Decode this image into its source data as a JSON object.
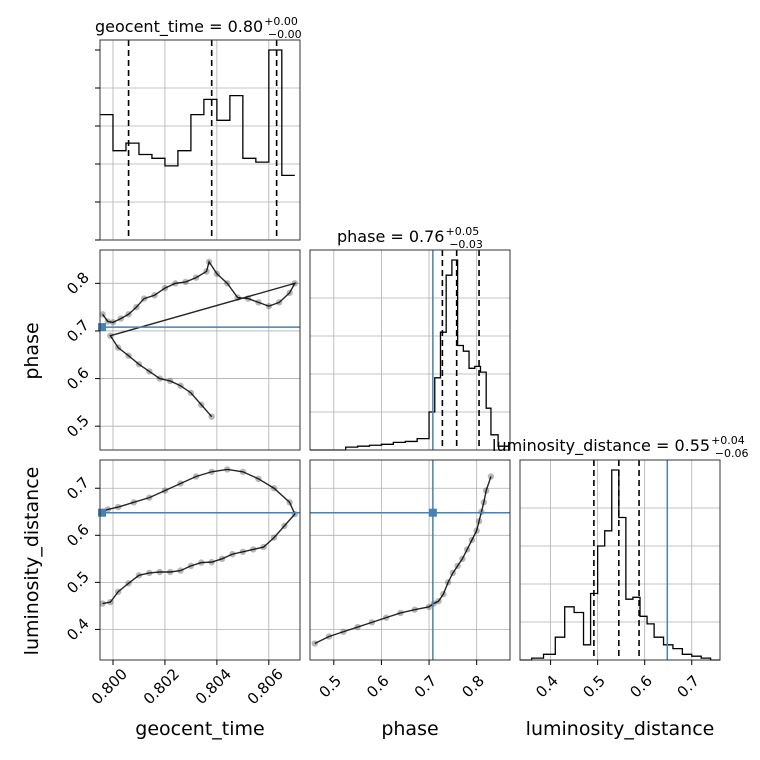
{
  "chart_data": {
    "type": "corner",
    "params": [
      "geocent_time",
      "phase",
      "luminosity_distance"
    ],
    "colors": {
      "truth": "#4682b4",
      "hist": "#000000",
      "grid": "#b0b0b0",
      "samples": "#333333"
    },
    "grid": true,
    "truths": {
      "geocent_time": null,
      "phase": 0.708,
      "luminosity_distance": 0.648
    },
    "ranges": {
      "geocent_time": [
        0.7995,
        0.8072
      ],
      "phase": [
        0.45,
        0.87
      ],
      "luminosity_distance": [
        0.335,
        0.76
      ]
    },
    "titles": {
      "geocent_time": {
        "text": "geocent_time = 0.80",
        "plus": "+0.00",
        "minus": "−0.00"
      },
      "phase": {
        "text": "phase = 0.76",
        "plus": "+0.05",
        "minus": "−0.03"
      },
      "luminosity_distance": {
        "text": "luminosity_distance = 0.55",
        "plus": "+0.04",
        "minus": "−0.06"
      }
    },
    "xlabels": [
      "geocent_time",
      "phase",
      "luminosity_distance"
    ],
    "ylabels": [
      "",
      "phase",
      "luminosity_distance"
    ],
    "ticks": {
      "geocent_time": {
        "values": [
          0.8,
          0.802,
          0.804,
          0.806
        ],
        "labels": [
          "0.800",
          "0.802",
          "0.804",
          "0.806"
        ]
      },
      "phase_x": {
        "values": [
          0.5,
          0.6,
          0.7,
          0.8
        ],
        "labels": [
          "0.5",
          "0.6",
          "0.7",
          "0.8"
        ]
      },
      "phase_y": {
        "values": [
          0.5,
          0.6,
          0.7,
          0.8
        ],
        "labels": [
          "0.5",
          "0.6",
          "0.7",
          "0.8"
        ]
      },
      "luminosity_distance_x": {
        "values": [
          0.4,
          0.5,
          0.6,
          0.7
        ],
        "labels": [
          "0.4",
          "0.5",
          "0.6",
          "0.7"
        ]
      },
      "luminosity_distance_y": {
        "values": [
          0.4,
          0.5,
          0.6,
          0.7
        ],
        "labels": [
          "0.4",
          "0.5",
          "0.6",
          "0.7"
        ]
      }
    },
    "quantiles": {
      "geocent_time": [
        0.8006,
        0.8038,
        0.8063
      ],
      "phase": [
        0.728,
        0.758,
        0.805
      ],
      "luminosity_distance": [
        0.492,
        0.545,
        0.588
      ]
    },
    "histograms": {
      "geocent_time": {
        "edges": [
          0.7995,
          0.8,
          0.8005,
          0.801,
          0.8015,
          0.802,
          0.8025,
          0.803,
          0.8035,
          0.804,
          0.8045,
          0.805,
          0.8055,
          0.806,
          0.8065,
          0.807
        ],
        "counts": [
          0.66,
          0.47,
          0.51,
          0.45,
          0.43,
          0.39,
          0.47,
          0.66,
          0.74,
          0.63,
          0.76,
          0.43,
          0.41,
          1.0,
          0.34
        ]
      },
      "phase": {
        "edges": [
          0.45,
          0.475,
          0.5,
          0.525,
          0.55,
          0.575,
          0.6,
          0.625,
          0.65,
          0.675,
          0.7,
          0.712,
          0.724,
          0.736,
          0.748,
          0.76,
          0.772,
          0.784,
          0.796,
          0.808,
          0.82,
          0.83,
          0.845,
          0.87
        ],
        "counts": [
          0,
          0,
          0,
          0.015,
          0.02,
          0.025,
          0.03,
          0.04,
          0.045,
          0.06,
          0.2,
          0.38,
          0.62,
          0.92,
          1.0,
          0.55,
          0.52,
          0.43,
          0.44,
          0.41,
          0.22,
          0.08,
          0.02
        ]
      },
      "luminosity_distance": {
        "edges": [
          0.335,
          0.36,
          0.385,
          0.41,
          0.43,
          0.45,
          0.47,
          0.485,
          0.5,
          0.515,
          0.53,
          0.545,
          0.56,
          0.575,
          0.59,
          0.605,
          0.62,
          0.64,
          0.66,
          0.68,
          0.7,
          0.72,
          0.74,
          0.76
        ],
        "counts": [
          0,
          0.01,
          0.03,
          0.12,
          0.28,
          0.25,
          0.08,
          0.35,
          0.6,
          0.68,
          1.0,
          0.75,
          0.32,
          0.33,
          0.23,
          0.19,
          0.12,
          0.08,
          0.06,
          0.03,
          0.02,
          0.01,
          0
        ]
      }
    },
    "samples": {
      "phase_vs_geocent_time": {
        "x": [
          0.7996,
          0.7998,
          0.8,
          0.8003,
          0.8006,
          0.8009,
          0.8012,
          0.8016,
          0.802,
          0.8024,
          0.8028,
          0.8032,
          0.8036,
          0.8037,
          0.804,
          0.8044,
          0.8048,
          0.8052,
          0.8056,
          0.806,
          0.8064,
          0.8068,
          0.807,
          0.7999,
          0.8002,
          0.8006,
          0.801,
          0.8014,
          0.8018,
          0.8022,
          0.8026,
          0.803,
          0.8034,
          0.8038
        ],
        "y": [
          0.735,
          0.72,
          0.718,
          0.726,
          0.735,
          0.75,
          0.768,
          0.775,
          0.79,
          0.8,
          0.803,
          0.812,
          0.825,
          0.845,
          0.82,
          0.8,
          0.77,
          0.768,
          0.76,
          0.752,
          0.76,
          0.78,
          0.8,
          0.69,
          0.665,
          0.648,
          0.63,
          0.615,
          0.6,
          0.595,
          0.585,
          0.57,
          0.545,
          0.52
        ]
      },
      "luminosity_distance_vs_geocent_time": {
        "x": [
          0.7996,
          0.7999,
          0.8002,
          0.8006,
          0.801,
          0.8014,
          0.8018,
          0.8022,
          0.8026,
          0.803,
          0.8034,
          0.8038,
          0.8042,
          0.8046,
          0.805,
          0.8054,
          0.8058,
          0.8062,
          0.8066,
          0.807,
          0.8068,
          0.8062,
          0.8056,
          0.805,
          0.8044,
          0.8038,
          0.8032,
          0.8026,
          0.802,
          0.8014,
          0.8008,
          0.8002,
          0.7998,
          0.7996
        ],
        "y": [
          0.455,
          0.458,
          0.48,
          0.498,
          0.515,
          0.52,
          0.522,
          0.522,
          0.525,
          0.535,
          0.542,
          0.543,
          0.55,
          0.56,
          0.565,
          0.57,
          0.575,
          0.595,
          0.62,
          0.645,
          0.67,
          0.7,
          0.72,
          0.735,
          0.74,
          0.735,
          0.725,
          0.71,
          0.695,
          0.68,
          0.67,
          0.66,
          0.655,
          0.65
        ]
      },
      "luminosity_distance_vs_phase": {
        "x": [
          0.46,
          0.49,
          0.52,
          0.55,
          0.58,
          0.61,
          0.64,
          0.67,
          0.7,
          0.71,
          0.72,
          0.73,
          0.74,
          0.75,
          0.76,
          0.77,
          0.78,
          0.79,
          0.8,
          0.805,
          0.81,
          0.815,
          0.82,
          0.83
        ],
        "y": [
          0.37,
          0.385,
          0.395,
          0.405,
          0.415,
          0.425,
          0.435,
          0.442,
          0.448,
          0.455,
          0.46,
          0.475,
          0.5,
          0.52,
          0.535,
          0.55,
          0.57,
          0.59,
          0.61,
          0.63,
          0.65,
          0.67,
          0.695,
          0.725
        ]
      }
    }
  }
}
